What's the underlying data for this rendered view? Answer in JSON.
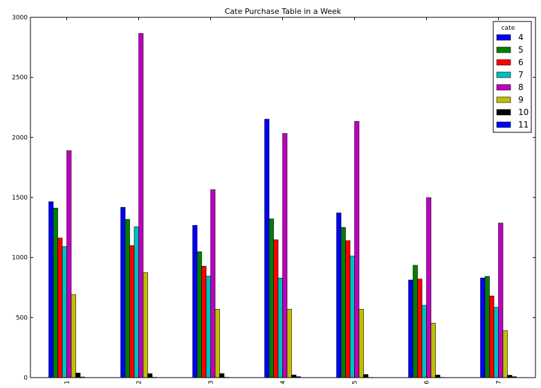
{
  "chart_data": {
    "type": "bar",
    "title": "Cate Purchase Table in a Week",
    "xlabel": "",
    "ylabel": "",
    "categories": [
      "1",
      "2",
      "3",
      "4",
      "5",
      "6",
      "7"
    ],
    "ylim": [
      0,
      3000
    ],
    "yticks": [
      0,
      500,
      1000,
      1500,
      2000,
      2500,
      3000
    ],
    "grid": false,
    "legend_title": "cate",
    "legend_position": "top-right",
    "series": [
      {
        "name": "4",
        "color": "#0000ff",
        "values": [
          1465,
          1418,
          1268,
          2152,
          1372,
          813,
          830
        ]
      },
      {
        "name": "5",
        "color": "#008000",
        "values": [
          1412,
          1318,
          1048,
          1322,
          1251,
          935,
          843
        ]
      },
      {
        "name": "6",
        "color": "#ff0000",
        "values": [
          1162,
          1099,
          928,
          1148,
          1140,
          821,
          680
        ]
      },
      {
        "name": "7",
        "color": "#00bfbf",
        "values": [
          1091,
          1256,
          845,
          829,
          1012,
          602,
          585
        ]
      },
      {
        "name": "8",
        "color": "#bf00bf",
        "values": [
          1890,
          2865,
          1565,
          2033,
          2134,
          1499,
          1287
        ]
      },
      {
        "name": "9",
        "color": "#bfbf00",
        "values": [
          692,
          874,
          569,
          570,
          569,
          454,
          392
        ]
      },
      {
        "name": "10",
        "color": "#000000",
        "values": [
          38,
          33,
          34,
          22,
          26,
          22,
          20
        ]
      },
      {
        "name": "11",
        "color": "#0000ff",
        "values": [
          5,
          3,
          3,
          8,
          2,
          2,
          8
        ]
      }
    ]
  }
}
